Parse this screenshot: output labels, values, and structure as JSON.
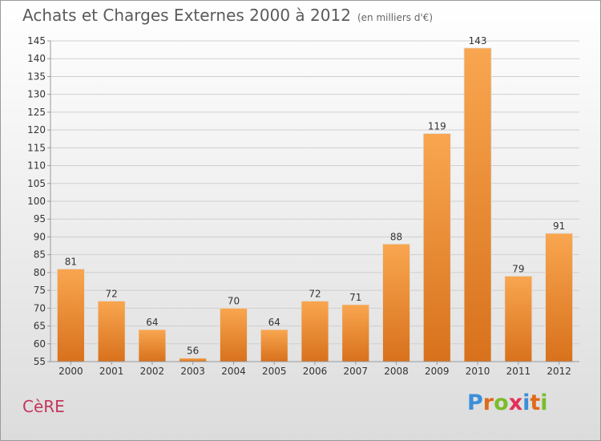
{
  "header": {
    "title": "Achats et Charges Externes 2000 à 2012",
    "subtitle": "(en milliers d'€)"
  },
  "commune": "CèRE",
  "logo": {
    "letters": [
      "P",
      "r",
      "o",
      "x",
      "i",
      "t",
      "i"
    ],
    "colors": [
      "#3b8fd9",
      "#e06a1b",
      "#7bbd2a",
      "#e2305a",
      "#3b8fd9",
      "#e06a1b",
      "#7bbd2a"
    ]
  },
  "colors": {
    "bar_top": "#f9a650",
    "bar_bottom": "#d8711c",
    "grid": "#cfcfcf",
    "axis": "#999999"
  },
  "chart_data": {
    "type": "bar",
    "title": "Achats et Charges Externes 2000 à 2012",
    "subtitle": "(en milliers d'€)",
    "categories": [
      "2000",
      "2001",
      "2002",
      "2003",
      "2004",
      "2005",
      "2006",
      "2007",
      "2008",
      "2009",
      "2010",
      "2011",
      "2012"
    ],
    "values": [
      81,
      72,
      64,
      56,
      70,
      64,
      72,
      71,
      88,
      119,
      143,
      79,
      91
    ],
    "ylim": [
      55,
      145
    ],
    "yticks": [
      55,
      60,
      65,
      70,
      75,
      80,
      85,
      90,
      95,
      100,
      105,
      110,
      115,
      120,
      125,
      130,
      135,
      140,
      145
    ],
    "grid": true,
    "data_labels": true
  }
}
